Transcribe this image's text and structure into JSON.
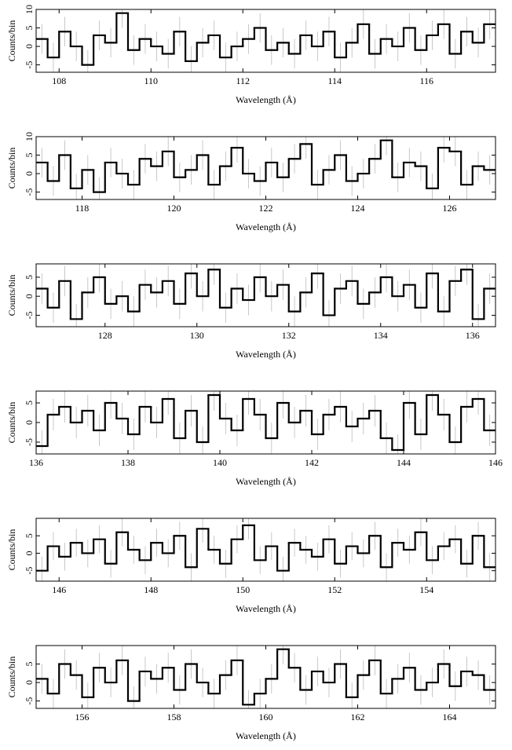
{
  "chart_data": [
    {
      "type": "histogram",
      "xlabel": "Wavelength (Å)",
      "ylabel": "Counts/bin",
      "color": "#000000",
      "error_color": "#bbbbbb",
      "xlim": [
        107.5,
        117.5
      ],
      "ylim": [
        -7,
        10
      ],
      "xticks": [
        108,
        110,
        112,
        114,
        116
      ],
      "yticks": [
        -5,
        0,
        5,
        10
      ],
      "yerr": 4,
      "bins": [
        107.5,
        107.75,
        108,
        108.25,
        108.5,
        108.75,
        109,
        109.25,
        109.5,
        109.75,
        110,
        110.25,
        110.5,
        110.75,
        111,
        111.25,
        111.5,
        111.75,
        112,
        112.25,
        112.5,
        112.75,
        113,
        113.25,
        113.5,
        113.75,
        114,
        114.25,
        114.5,
        114.75,
        115,
        115.25,
        115.5,
        115.75,
        116,
        116.25,
        116.5,
        116.75,
        117,
        117.25,
        117.5
      ],
      "values": [
        2,
        -3,
        4,
        0,
        -5,
        3,
        1,
        9,
        -1,
        2,
        0,
        -2,
        4,
        -4,
        1,
        3,
        -3,
        0,
        2,
        5,
        -1,
        1,
        -2,
        3,
        0,
        4,
        -3,
        1,
        6,
        -2,
        2,
        0,
        5,
        -1,
        3,
        6,
        -2,
        4,
        1,
        6
      ]
    },
    {
      "type": "histogram",
      "xlabel": "Wavelength (Å)",
      "ylabel": "Counts/bin",
      "color": "#000000",
      "error_color": "#bbbbbb",
      "xlim": [
        117,
        127
      ],
      "ylim": [
        -7,
        10
      ],
      "xticks": [
        118,
        120,
        122,
        124,
        126
      ],
      "yticks": [
        -5,
        0,
        5,
        10
      ],
      "yerr": 4,
      "bins": [
        117,
        117.25,
        117.5,
        117.75,
        118,
        118.25,
        118.5,
        118.75,
        119,
        119.25,
        119.5,
        119.75,
        120,
        120.25,
        120.5,
        120.75,
        121,
        121.25,
        121.5,
        121.75,
        122,
        122.25,
        122.5,
        122.75,
        123,
        123.25,
        123.5,
        123.75,
        124,
        124.25,
        124.5,
        124.75,
        125,
        125.25,
        125.5,
        125.75,
        126,
        126.25,
        126.5,
        126.75,
        127
      ],
      "values": [
        3,
        -2,
        5,
        -4,
        1,
        -5,
        3,
        0,
        -3,
        4,
        2,
        6,
        -1,
        1,
        5,
        -3,
        2,
        7,
        0,
        -2,
        3,
        -1,
        4,
        8,
        -3,
        1,
        5,
        -2,
        0,
        4,
        9,
        -1,
        3,
        2,
        -4,
        7,
        6,
        -3,
        2,
        1
      ]
    },
    {
      "type": "histogram",
      "xlabel": "Wavelength (Å)",
      "ylabel": "Counts/bin",
      "color": "#000000",
      "error_color": "#bbbbbb",
      "xlim": [
        126.5,
        136.5
      ],
      "ylim": [
        -8,
        8.5
      ],
      "xticks": [
        128,
        130,
        132,
        134,
        136
      ],
      "yticks": [
        -5,
        0,
        5
      ],
      "yerr": 4,
      "bins": [
        126.5,
        126.75,
        127,
        127.25,
        127.5,
        127.75,
        128,
        128.25,
        128.5,
        128.75,
        129,
        129.25,
        129.5,
        129.75,
        130,
        130.25,
        130.5,
        130.75,
        131,
        131.25,
        131.5,
        131.75,
        132,
        132.25,
        132.5,
        132.75,
        133,
        133.25,
        133.5,
        133.75,
        134,
        134.25,
        134.5,
        134.75,
        135,
        135.25,
        135.5,
        135.75,
        136,
        136.25,
        136.5
      ],
      "values": [
        2,
        -3,
        4,
        -6,
        1,
        5,
        -2,
        0,
        -4,
        3,
        1,
        4,
        -2,
        6,
        0,
        7,
        -3,
        2,
        -1,
        5,
        0,
        3,
        -4,
        1,
        6,
        -5,
        2,
        4,
        -2,
        1,
        5,
        0,
        3,
        -3,
        6,
        -4,
        4,
        7,
        -6,
        2
      ]
    },
    {
      "type": "histogram",
      "xlabel": "Wavelength (Å)",
      "ylabel": "Counts/bin",
      "color": "#000000",
      "error_color": "#bbbbbb",
      "xlim": [
        136,
        146
      ],
      "ylim": [
        -8,
        8
      ],
      "xticks": [
        136,
        138,
        140,
        142,
        144,
        146
      ],
      "yticks": [
        -5,
        0,
        5
      ],
      "yerr": 4,
      "bins": [
        136,
        136.25,
        136.5,
        136.75,
        137,
        137.25,
        137.5,
        137.75,
        138,
        138.25,
        138.5,
        138.75,
        139,
        139.25,
        139.5,
        139.75,
        140,
        140.25,
        140.5,
        140.75,
        141,
        141.25,
        141.5,
        141.75,
        142,
        142.25,
        142.5,
        142.75,
        143,
        143.25,
        143.5,
        143.75,
        144,
        144.25,
        144.5,
        144.75,
        145,
        145.25,
        145.5,
        145.75,
        146
      ],
      "values": [
        -6,
        2,
        4,
        0,
        3,
        -2,
        5,
        1,
        -3,
        4,
        0,
        6,
        -4,
        3,
        -5,
        7,
        1,
        -2,
        6,
        2,
        -4,
        5,
        0,
        3,
        -3,
        2,
        4,
        -1,
        1,
        3,
        -4,
        -7,
        5,
        -3,
        7,
        2,
        -5,
        4,
        6,
        -2
      ]
    },
    {
      "type": "histogram",
      "xlabel": "Wavelength (Å)",
      "ylabel": "Counts/bin",
      "color": "#000000",
      "error_color": "#bbbbbb",
      "xlim": [
        145.5,
        155.5
      ],
      "ylim": [
        -8,
        10
      ],
      "xticks": [
        146,
        148,
        150,
        152,
        154
      ],
      "yticks": [
        -5,
        0,
        5
      ],
      "yerr": 4,
      "bins": [
        145.5,
        145.75,
        146,
        146.25,
        146.5,
        146.75,
        147,
        147.25,
        147.5,
        147.75,
        148,
        148.25,
        148.5,
        148.75,
        149,
        149.25,
        149.5,
        149.75,
        150,
        150.25,
        150.5,
        150.75,
        151,
        151.25,
        151.5,
        151.75,
        152,
        152.25,
        152.5,
        152.75,
        153,
        153.25,
        153.5,
        153.75,
        154,
        154.25,
        154.5,
        154.75,
        155,
        155.25,
        155.5
      ],
      "values": [
        -5,
        2,
        -1,
        3,
        0,
        4,
        -3,
        6,
        1,
        -2,
        3,
        0,
        5,
        -4,
        7,
        1,
        -3,
        4,
        8,
        -2,
        2,
        -5,
        3,
        1,
        -1,
        4,
        -3,
        2,
        0,
        5,
        -4,
        3,
        1,
        6,
        -2,
        2,
        4,
        -3,
        5,
        -4
      ]
    },
    {
      "type": "histogram",
      "xlabel": "Wavelength (Å)",
      "ylabel": "Counts/bin",
      "color": "#000000",
      "error_color": "#bbbbbb",
      "xlim": [
        155,
        165
      ],
      "ylim": [
        -7,
        10
      ],
      "xticks": [
        156,
        158,
        160,
        162,
        164
      ],
      "yticks": [
        -5,
        0,
        5
      ],
      "yerr": 4,
      "bins": [
        155,
        155.25,
        155.5,
        155.75,
        156,
        156.25,
        156.5,
        156.75,
        157,
        157.25,
        157.5,
        157.75,
        158,
        158.25,
        158.5,
        158.75,
        159,
        159.25,
        159.5,
        159.75,
        160,
        160.25,
        160.5,
        160.75,
        161,
        161.25,
        161.5,
        161.75,
        162,
        162.25,
        162.5,
        162.75,
        163,
        163.25,
        163.5,
        163.75,
        164,
        164.25,
        164.5,
        164.75,
        165
      ],
      "values": [
        1,
        -3,
        5,
        2,
        -4,
        4,
        0,
        6,
        -5,
        3,
        1,
        4,
        -2,
        5,
        0,
        -3,
        2,
        6,
        -6,
        -3,
        1,
        9,
        4,
        -2,
        3,
        0,
        5,
        -4,
        2,
        6,
        -3,
        1,
        4,
        -2,
        0,
        5,
        -1,
        3,
        2,
        -2
      ]
    }
  ]
}
